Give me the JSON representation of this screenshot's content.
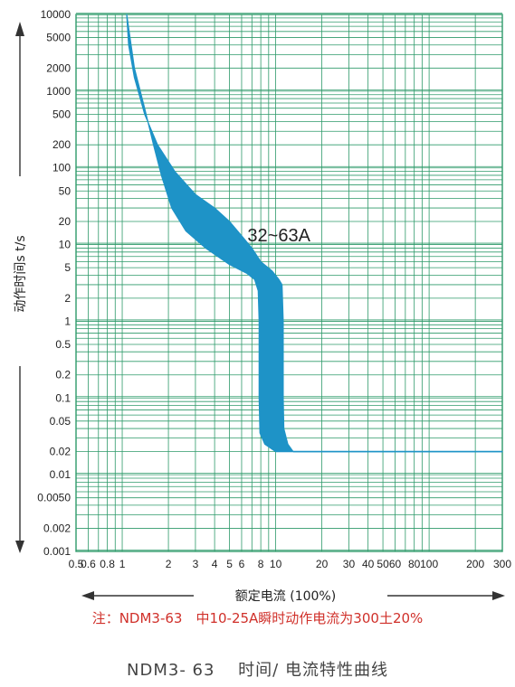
{
  "chart_data": {
    "type": "area",
    "title": "",
    "ylabel": "动作时间s t/s",
    "xlabel": "额定电流 (100%)",
    "x_scale": "log",
    "y_scale": "log",
    "xlim": [
      0.5,
      300
    ],
    "ylim": [
      0.001,
      10000
    ],
    "grid": true,
    "x_tick_labels": [
      {
        "v": 0.5,
        "t": "0.5"
      },
      {
        "v": 0.6,
        "t": "0.6"
      },
      {
        "v": 0.8,
        "t": "0.8"
      },
      {
        "v": 1,
        "t": "1"
      },
      {
        "v": 2,
        "t": "2"
      },
      {
        "v": 3,
        "t": "3"
      },
      {
        "v": 4,
        "t": "4"
      },
      {
        "v": 5,
        "t": "5"
      },
      {
        "v": 6,
        "t": "6"
      },
      {
        "v": 8,
        "t": "8"
      },
      {
        "v": 10,
        "t": "10"
      },
      {
        "v": 20,
        "t": "20"
      },
      {
        "v": 30,
        "t": "30"
      },
      {
        "v": 40,
        "t": "40"
      },
      {
        "v": 50,
        "t": "50"
      },
      {
        "v": 60,
        "t": "60"
      },
      {
        "v": 80,
        "t": "80"
      },
      {
        "v": 100,
        "t": "100"
      },
      {
        "v": 200,
        "t": "200"
      },
      {
        "v": 300,
        "t": "300"
      }
    ],
    "y_tick_labels": [
      {
        "v": 10000,
        "t": "10000"
      },
      {
        "v": 5000,
        "t": "5000"
      },
      {
        "v": 2000,
        "t": "2000"
      },
      {
        "v": 1000,
        "t": "1000"
      },
      {
        "v": 500,
        "t": "500"
      },
      {
        "v": 200,
        "t": "200"
      },
      {
        "v": 100,
        "t": "100"
      },
      {
        "v": 50,
        "t": "50"
      },
      {
        "v": 20,
        "t": "20"
      },
      {
        "v": 10,
        "t": "10"
      },
      {
        "v": 5,
        "t": "5"
      },
      {
        "v": 2,
        "t": "2"
      },
      {
        "v": 1,
        "t": "1"
      },
      {
        "v": 0.5,
        "t": "0.5"
      },
      {
        "v": 0.2,
        "t": "0.2"
      },
      {
        "v": 0.1,
        "t": "0.1"
      },
      {
        "v": 0.05,
        "t": "0.05"
      },
      {
        "v": 0.02,
        "t": "0.02"
      },
      {
        "v": 0.01,
        "t": "0.01"
      },
      {
        "v": 0.005,
        "t": "0.0050"
      },
      {
        "v": 0.002,
        "t": "0.002"
      },
      {
        "v": 0.001,
        "t": "0.001"
      }
    ],
    "series": [
      {
        "name": "32~63A",
        "upper_boundary": [
          [
            1.07,
            10000
          ],
          [
            1.1,
            4000
          ],
          [
            1.2,
            1500
          ],
          [
            1.4,
            500
          ],
          [
            1.7,
            200
          ],
          [
            2.2,
            90
          ],
          [
            3,
            45
          ],
          [
            4,
            30
          ],
          [
            5,
            20
          ],
          [
            6,
            13
          ],
          [
            7,
            9
          ],
          [
            8,
            6
          ],
          [
            9.5,
            4.5
          ],
          [
            10.5,
            3.5
          ],
          [
            11,
            3
          ],
          [
            11.2,
            1
          ],
          [
            11.2,
            0.1
          ],
          [
            11.3,
            0.04
          ],
          [
            12,
            0.025
          ],
          [
            13,
            0.02
          ],
          [
            300,
            0.02
          ]
        ],
        "lower_boundary": [
          [
            1.07,
            10000
          ],
          [
            1.2,
            2000
          ],
          [
            1.4,
            600
          ],
          [
            1.6,
            200
          ],
          [
            1.8,
            80
          ],
          [
            2.1,
            30
          ],
          [
            2.6,
            15
          ],
          [
            3.5,
            9
          ],
          [
            5,
            5.5
          ],
          [
            6.5,
            4.2
          ],
          [
            7.3,
            3.5
          ],
          [
            7.7,
            2.5
          ],
          [
            7.8,
            1
          ],
          [
            7.8,
            0.1
          ],
          [
            7.9,
            0.035
          ],
          [
            8.5,
            0.025
          ],
          [
            10,
            0.02
          ],
          [
            13,
            0.02
          ]
        ],
        "color": "#1E93C7"
      }
    ],
    "annotation": "32~63A",
    "grid_color": "#2E9A6A",
    "axis_arrow_color": "#333333"
  },
  "note": "注：NDM3-63　中10-25A瞬时动作电流为300土20%",
  "note_color": "#D0302A",
  "caption": "NDM3- 63　 时间/ 电流特性曲线"
}
